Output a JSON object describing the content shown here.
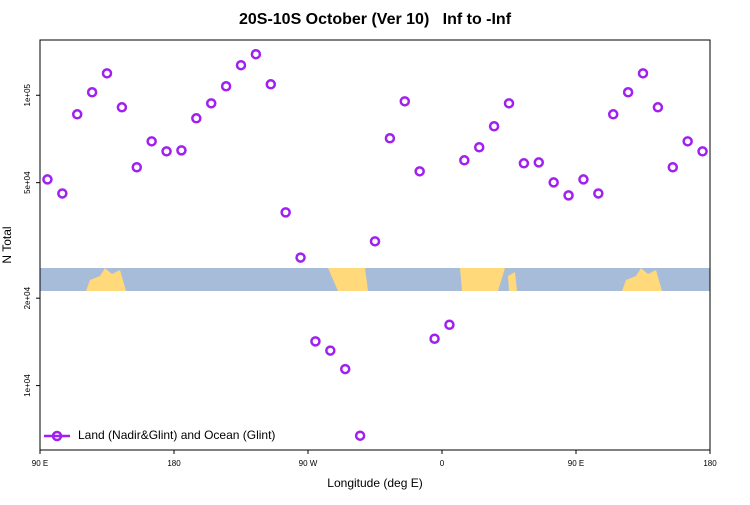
{
  "chart_data": {
    "type": "scatter",
    "title": "20S-10S October (Ver 10)   Inf to -Inf",
    "x_label": "Longitude (deg E)",
    "y_label": "N Total",
    "log_y": true,
    "legend_position": "bottom-left",
    "xlim": [
      90,
      540
    ],
    "xticks": [
      {
        "value": 90,
        "label": "90 E"
      },
      180,
      {
        "value": 270,
        "label": "90 W"
      },
      {
        "value": 360,
        "label": "0"
      },
      {
        "value": 450,
        "label": "90 E"
      },
      {
        "value": 540,
        "label": "180"
      }
    ],
    "ylim": [
      6000,
      155000
    ],
    "yticks": [
      {
        "value": 10000,
        "label": "1e+04"
      },
      {
        "value": 20000,
        "label": "2e+04"
      },
      {
        "value": 50000,
        "label": "5e+04"
      },
      {
        "value": 100000,
        "label": "1e+05"
      }
    ],
    "series": [
      {
        "name": "Land (Nadir&Glint) and Ocean (Glint)",
        "color": "#a020f0",
        "x": [
          95,
          105,
          115,
          125,
          135,
          145,
          155,
          165,
          175,
          185,
          195,
          205,
          215,
          225,
          235,
          245,
          255,
          265,
          275,
          285,
          295,
          305,
          315,
          325,
          335,
          345,
          355,
          365,
          375,
          385,
          395,
          405,
          415,
          425,
          435,
          445,
          455,
          465,
          475,
          485,
          495,
          505,
          515,
          525,
          535
        ],
        "values": [
          51300,
          45900,
          86000,
          102400,
          119000,
          90900,
          56500,
          69400,
          64100,
          64600,
          83300,
          93800,
          107400,
          126900,
          138500,
          109100,
          39500,
          27600,
          14200,
          13200,
          11400,
          6720,
          31400,
          71100,
          95300,
          54700,
          14500,
          16200,
          59700,
          66200,
          78200,
          93800,
          58300,
          58700,
          50100,
          45200,
          51300,
          45900,
          86000,
          102400,
          119000,
          90900,
          56500,
          69400,
          64100
        ]
      }
    ]
  }
}
